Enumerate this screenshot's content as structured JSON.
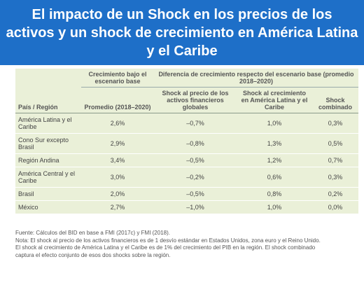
{
  "title": [
    "El impacto de un Shock en los precios de los",
    "activos y un shock de crecimiento en América Latina",
    "y el Caribe"
  ],
  "table": {
    "group_headers": [
      "Crecimiento bajo el escenario base",
      "Diferencia de crecimiento respecto del escenario base (promedio 2018–2020)"
    ],
    "headers": [
      "País / Región",
      "Promedio (2018–2020)",
      "Shock al precio de los activos financieros globales",
      "Shock al crecimiento en América Latina y el Caribe",
      "Shock combinado"
    ],
    "rows": [
      [
        "América Latina y el Caribe",
        "2,6%",
        "–0,7%",
        "1,0%",
        "0,3%"
      ],
      [
        "Cono Sur excepto Brasil",
        "2,9%",
        "–0,8%",
        "1,3%",
        "0,5%"
      ],
      [
        "Región Andina",
        "3,4%",
        "–0,5%",
        "1,2%",
        "0,7%"
      ],
      [
        "América Central y el Caribe",
        "3,0%",
        "–0,2%",
        "0,6%",
        "0,3%"
      ],
      [
        "Brasil",
        "2,0%",
        "–0,5%",
        "0,8%",
        "0,2%"
      ],
      [
        "México",
        "2,7%",
        "–1,0%",
        "1,0%",
        "0,0%"
      ]
    ]
  },
  "notes": [
    "Fuente: Cálculos del BID en base a FMI (2017c) y FMI (2018).",
    "Nota: El shock al precio de los activos financieros es de 1 desvío estándar en Estados Unidos, zona euro y el Reino Unido.",
    "El shock al crecimiento de  América Latina y el Caribe es de 1% del crecimiento del PIB en la región. El shock combinado",
    "captura el efecto conjunto de esos dos shocks sobre la región."
  ]
}
